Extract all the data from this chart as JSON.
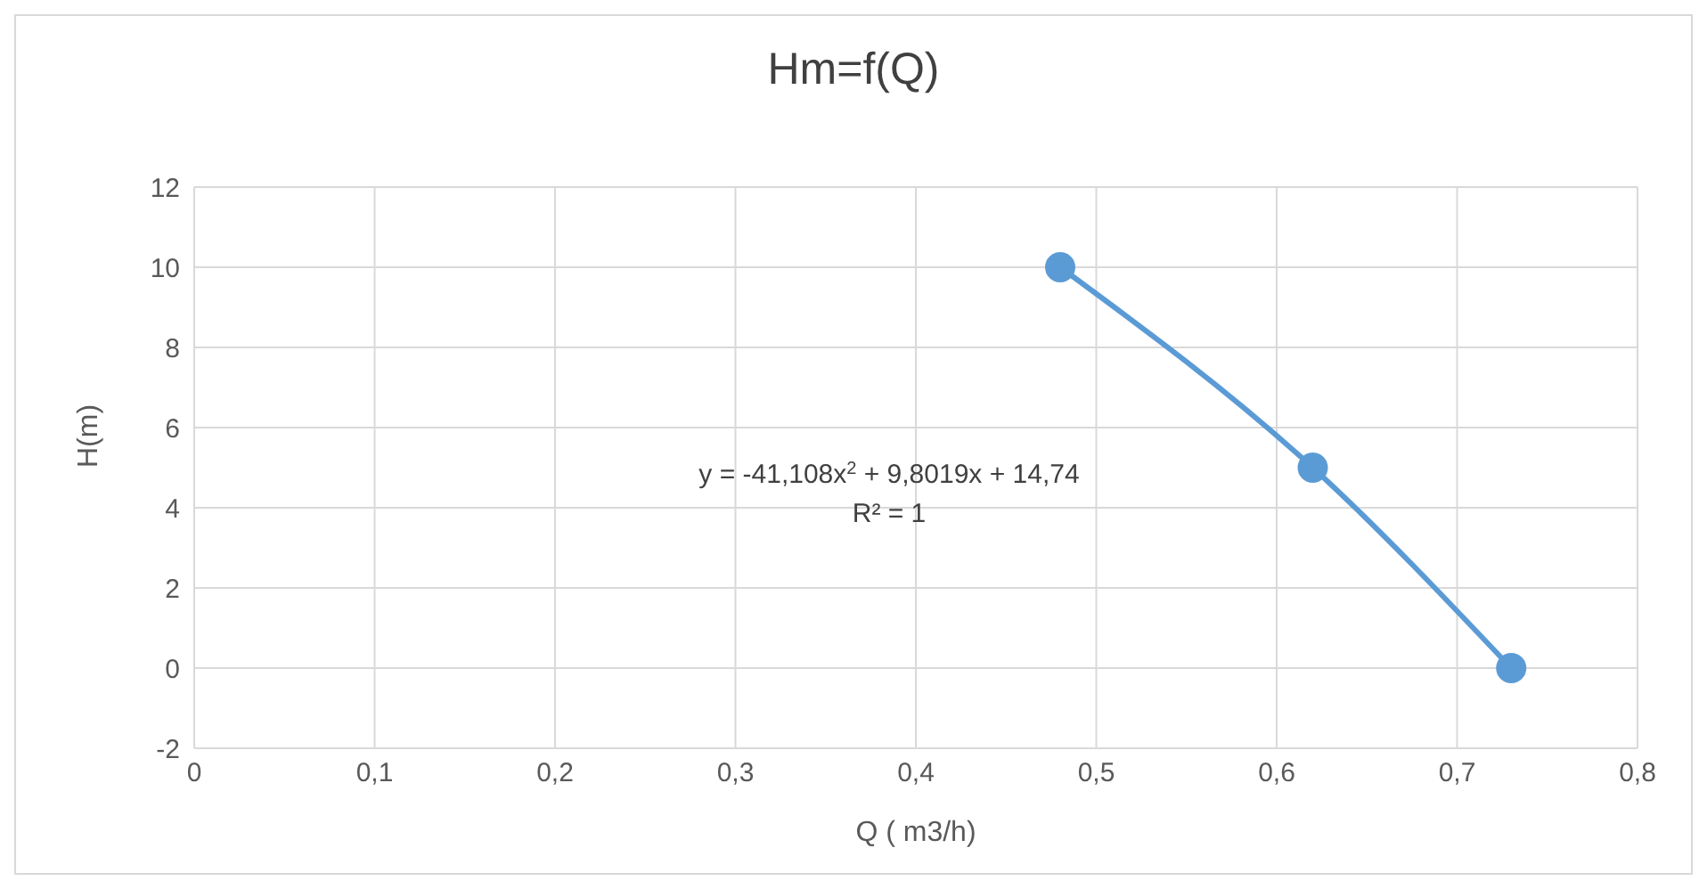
{
  "chart_data": {
    "type": "line",
    "title": "Hm=f(Q)",
    "xlabel": "Q ( m3/h)",
    "ylabel": "H(m)",
    "series": [
      {
        "color": "#5b9bd5",
        "x": [
          0.48,
          0.62,
          0.73
        ],
        "values": [
          10,
          5,
          0
        ]
      }
    ],
    "xlim": [
      0,
      0.8
    ],
    "xticks": [
      0,
      {
        "value": 0.1,
        "label": "0,1"
      },
      {
        "value": 0.2,
        "label": "0,2"
      },
      {
        "value": 0.3,
        "label": "0,3"
      },
      {
        "value": 0.4,
        "label": "0,4"
      },
      {
        "value": 0.5,
        "label": "0,5"
      },
      {
        "value": 0.6,
        "label": "0,6"
      },
      {
        "value": 0.7,
        "label": "0,7"
      },
      {
        "value": 0.8,
        "label": "0,8"
      }
    ],
    "ylim": [
      -2,
      12
    ],
    "yticks": [
      -2,
      0,
      2,
      4,
      6,
      8,
      10,
      12
    ],
    "grid": true,
    "legend": false,
    "marker": "circle",
    "line_style": "solid",
    "annotations": [
      "y = -41,108x$^{2}$ + 9,8019x + 14,74",
      "R² = 1"
    ]
  }
}
